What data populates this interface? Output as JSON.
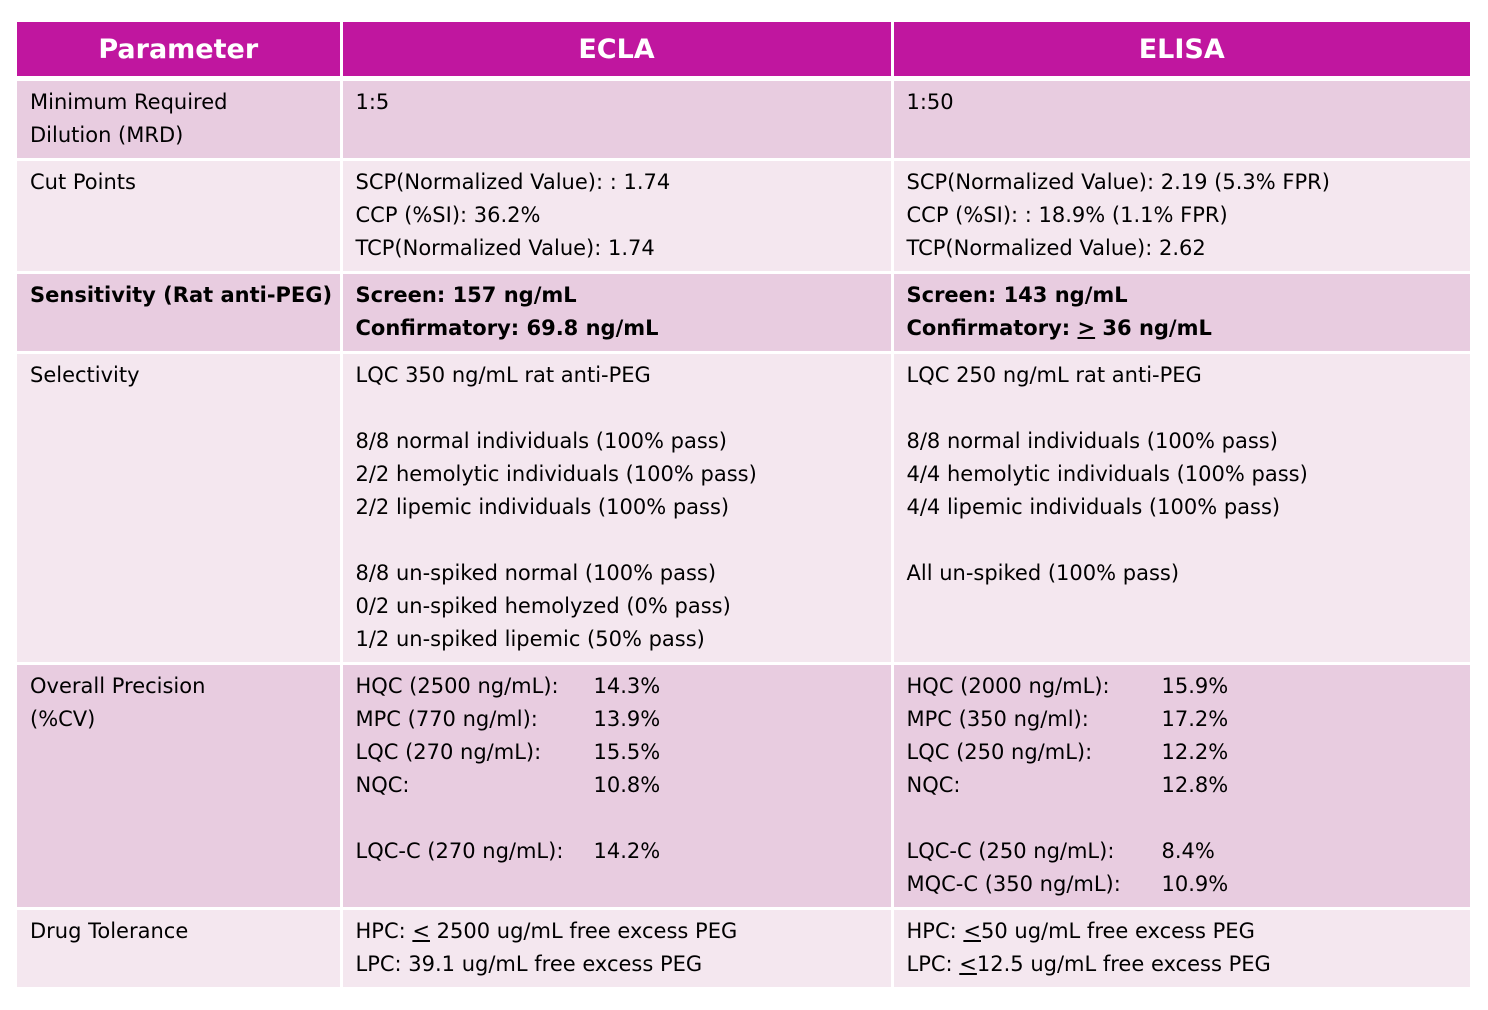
{
  "header": {
    "parameter": "Parameter",
    "ecla": "ECLA",
    "elisa": "ELISA"
  },
  "rows": {
    "mrd": {
      "label_line1": "Minimum Required",
      "label_line2": "Dilution (MRD)",
      "ecla": "1:5",
      "elisa": "1:50"
    },
    "cut_points": {
      "label": "Cut Points",
      "ecla": [
        "SCP(Normalized Value): : 1.74",
        "CCP (%SI): 36.2%",
        "TCP(Normalized Value):  1.74"
      ],
      "elisa": [
        "SCP(Normalized Value):  2.19  (5.3% FPR)",
        "CCP (%SI): : 18.9%   (1.1% FPR)",
        "TCP(Normalized Value):  2.62"
      ]
    },
    "sensitivity": {
      "label": "Sensitivity (Rat anti-PEG)",
      "ecla_screen": "Screen: 157 ng/mL",
      "ecla_confirm": "Confirmatory: 69.8 ng/mL",
      "elisa_screen": "Screen: 143 ng/mL",
      "elisa_confirm_prefix": "Confirmatory: ",
      "elisa_confirm_symbol": ">",
      "elisa_confirm_value": " 36 ng/mL"
    },
    "selectivity": {
      "label": "Selectivity",
      "ecla": {
        "lqc": "LQC 350 ng/mL rat anti-PEG",
        "group1": [
          "8/8 normal individuals (100% pass)",
          "2/2 hemolytic individuals (100% pass)",
          "2/2 lipemic individuals (100% pass)"
        ],
        "group2": [
          "8/8 un-spiked normal (100% pass)",
          "0/2 un-spiked hemolyzed (0% pass)",
          "1/2 un-spiked lipemic (50% pass)"
        ]
      },
      "elisa": {
        "lqc": "LQC 250 ng/mL rat anti-PEG",
        "group1": [
          "8/8 normal individuals (100% pass)",
          "4/4 hemolytic individuals (100% pass)",
          "4/4 lipemic individuals (100% pass)"
        ],
        "group2": [
          "All un-spiked (100% pass)"
        ]
      }
    },
    "precision": {
      "label_line1": "Overall Precision",
      "label_line2": "(%CV)",
      "ecla": [
        {
          "k": "HQC (2500 ng/mL):",
          "v": "14.3%"
        },
        {
          "k": "MPC (770 ng/ml):",
          "v": "13.9%"
        },
        {
          "k": "LQC (270 ng/mL):",
          "v": "15.5%"
        },
        {
          "k": "NQC:",
          "v": "10.8%"
        }
      ],
      "ecla_extra": [
        {
          "k": "LQC-C (270 ng/mL):",
          "v": "14.2%"
        }
      ],
      "elisa": [
        {
          "k": "HQC (2000 ng/mL):",
          "v": "15.9%"
        },
        {
          "k": "MPC (350 ng/ml):",
          "v": "17.2%"
        },
        {
          "k": "LQC (250 ng/mL):",
          "v": "12.2%"
        },
        {
          "k": "NQC:",
          "v": "12.8%"
        }
      ],
      "elisa_extra": [
        {
          "k": "LQC-C (250 ng/mL):",
          "v": "8.4%"
        },
        {
          "k": "MQC-C (350 ng/mL):",
          "v": "10.9%"
        }
      ]
    },
    "drug_tolerance": {
      "label": "Drug Tolerance",
      "ecla_hpc_prefix": "HPC:  ",
      "ecla_hpc_symbol": "<",
      "ecla_hpc_value": " 2500 ug/mL free excess PEG",
      "ecla_lpc": "LPC: 39.1 ug/mL free excess PEG",
      "elisa_hpc_prefix": "HPC:  ",
      "elisa_hpc_symbol": "<",
      "elisa_hpc_value": "50 ug/mL free excess PEG",
      "elisa_lpc_prefix": "LPC: ",
      "elisa_lpc_symbol": "<",
      "elisa_lpc_value": "12.5 ug/mL free excess PEG"
    }
  }
}
